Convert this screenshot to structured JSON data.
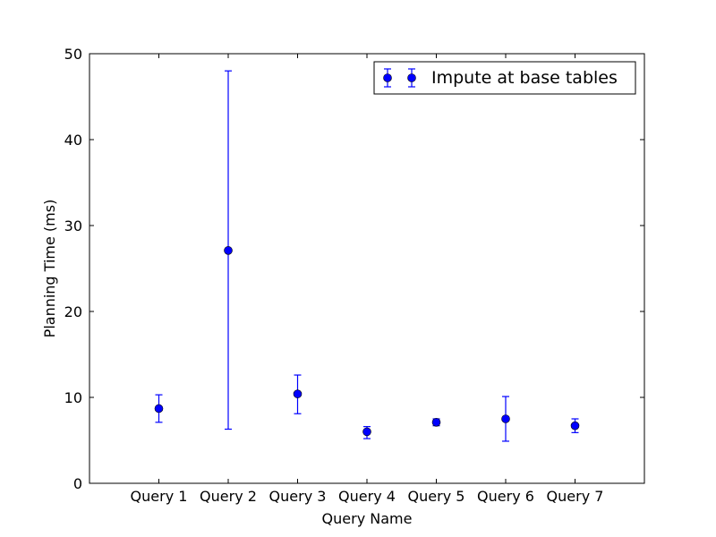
{
  "chart_data": {
    "type": "scatter",
    "title": "",
    "xlabel": "Query Name",
    "ylabel": "Planning Time (ms)",
    "ylim": [
      0,
      50
    ],
    "yticks": [
      0,
      10,
      20,
      30,
      40,
      50
    ],
    "categories": [
      "Query 1",
      "Query 2",
      "Query 3",
      "Query 4",
      "Query 5",
      "Query 6",
      "Query 7"
    ],
    "grid": false,
    "legend_position": "top-right",
    "series": [
      {
        "name": "Impute at base tables",
        "color": "#0000ff",
        "marker": "circle",
        "values": [
          8.7,
          27.1,
          10.4,
          6.0,
          7.1,
          7.5,
          6.7
        ],
        "error_low": [
          7.1,
          6.3,
          8.1,
          5.2,
          6.7,
          4.9,
          5.9
        ],
        "error_high": [
          10.3,
          48.0,
          12.6,
          6.6,
          7.5,
          10.1,
          7.5
        ]
      }
    ]
  }
}
